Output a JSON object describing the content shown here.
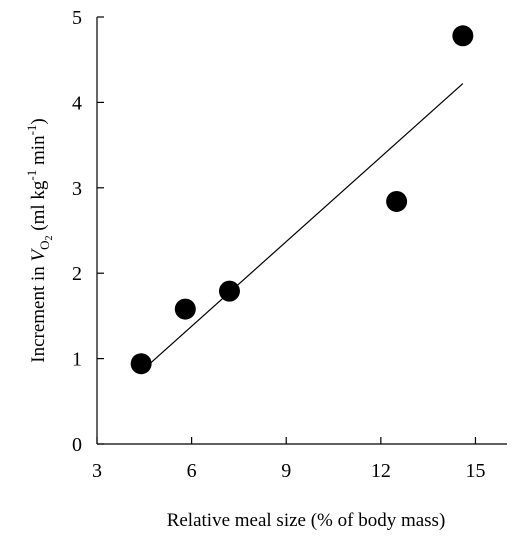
{
  "chart_data": {
    "type": "scatter",
    "title": "",
    "xlabel": "Relative meal size (% of body mass)",
    "ylabel": {
      "before": "Increment in ",
      "symbol": "V",
      "symbol_sub": "O",
      "symbol_sub2": "2",
      "unit_open": " (ml kg",
      "exp1": "-1",
      "unit_mid": " min",
      "exp2": "-1",
      "unit_close": ")"
    },
    "xlim": [
      3,
      16
    ],
    "ylim": [
      0,
      5
    ],
    "xticks": [
      3,
      6,
      9,
      12,
      15
    ],
    "yticks": [
      0,
      1,
      2,
      3,
      4,
      5
    ],
    "grid": false,
    "series": [
      {
        "points": [
          {
            "x": 4.4,
            "y": 0.94
          },
          {
            "x": 5.8,
            "y": 1.58
          },
          {
            "x": 7.2,
            "y": 1.79
          },
          {
            "x": 12.5,
            "y": 2.84
          },
          {
            "x": 14.6,
            "y": 4.78
          }
        ],
        "marker": "filled-circle",
        "color": "#000000"
      }
    ],
    "regression_line": {
      "x": [
        4.4,
        14.6
      ],
      "y": [
        0.85,
        4.22
      ]
    }
  }
}
